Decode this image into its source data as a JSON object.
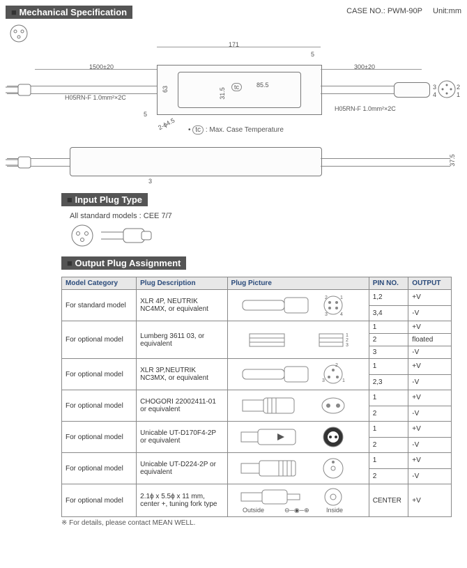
{
  "header": {
    "mech_title": "Mechanical Specification",
    "case_no_label": "CASE NO.:",
    "case_no": "PWM-90P",
    "unit_label": "Unit:mm"
  },
  "mech": {
    "len_171": "171",
    "cable_left": "1500±20",
    "cable_right": "300±20",
    "wire_left": "H05RN-F 1.0mm²×2C",
    "wire_right": "H05RN-F 1.0mm²×2C",
    "h_63": "63",
    "h_315": "31.5",
    "w_855": "85.5",
    "h_5a": "5",
    "h_5b": "5",
    "phi": "2-ϕ4.5",
    "tc": "tc",
    "tc_note": ": Max. Case Temperature",
    "h_375": "37.5",
    "h_3": "3",
    "pins": {
      "p1": "1",
      "p2": "2",
      "p3": "3",
      "p4": "4"
    }
  },
  "input": {
    "title": "Input Plug Type",
    "note": "All standard models : CEE 7/7"
  },
  "output": {
    "title": "Output Plug Assignment",
    "cols": {
      "model": "Model Category",
      "desc": "Plug Description",
      "pic": "Plug Picture",
      "pin": "PIN NO.",
      "out": "OUTPUT"
    },
    "rows": [
      {
        "model": "For standard model",
        "desc": "XLR 4P, NEUTRIK NC4MX, or equivalent",
        "pins": [
          {
            "pin": "1,2",
            "out": "+V"
          },
          {
            "pin": "3,4",
            "out": "-V"
          }
        ]
      },
      {
        "model": "For optional model",
        "desc": "Lumberg 3611 03, or equivalent",
        "pins": [
          {
            "pin": "1",
            "out": "+V"
          },
          {
            "pin": "2",
            "out": "floated"
          },
          {
            "pin": "3",
            "out": "-V"
          }
        ]
      },
      {
        "model": "For optional model",
        "desc": "XLR 3P,NEUTRIK NC3MX, or equivalent",
        "pins": [
          {
            "pin": "1",
            "out": "+V"
          },
          {
            "pin": "2,3",
            "out": "-V"
          }
        ]
      },
      {
        "model": "For optional model",
        "desc": "CHOGORI 22002411-01 or equivalent",
        "pins": [
          {
            "pin": "1",
            "out": "+V"
          },
          {
            "pin": "2",
            "out": "-V"
          }
        ]
      },
      {
        "model": "For optional model",
        "desc": "Unicable UT-D170F4-2P or equivalent",
        "pins": [
          {
            "pin": "1",
            "out": "+V"
          },
          {
            "pin": "2",
            "out": "-V"
          }
        ]
      },
      {
        "model": "For optional model",
        "desc": "Unicable UT-D224-2P or equivalent",
        "pins": [
          {
            "pin": "1",
            "out": "+V"
          },
          {
            "pin": "2",
            "out": "-V"
          }
        ]
      },
      {
        "model": "For optional model",
        "desc": "2.1ϕ x 5.5ϕ x 11 mm, center +, tuning fork type",
        "outside": "Outside",
        "inside": "Inside",
        "polarity": "⊖─◉─⊕",
        "pins": [
          {
            "pin": "CENTER",
            "out": "+V"
          }
        ]
      }
    ],
    "footnote": "※ For details, please contact MEAN WELL."
  }
}
